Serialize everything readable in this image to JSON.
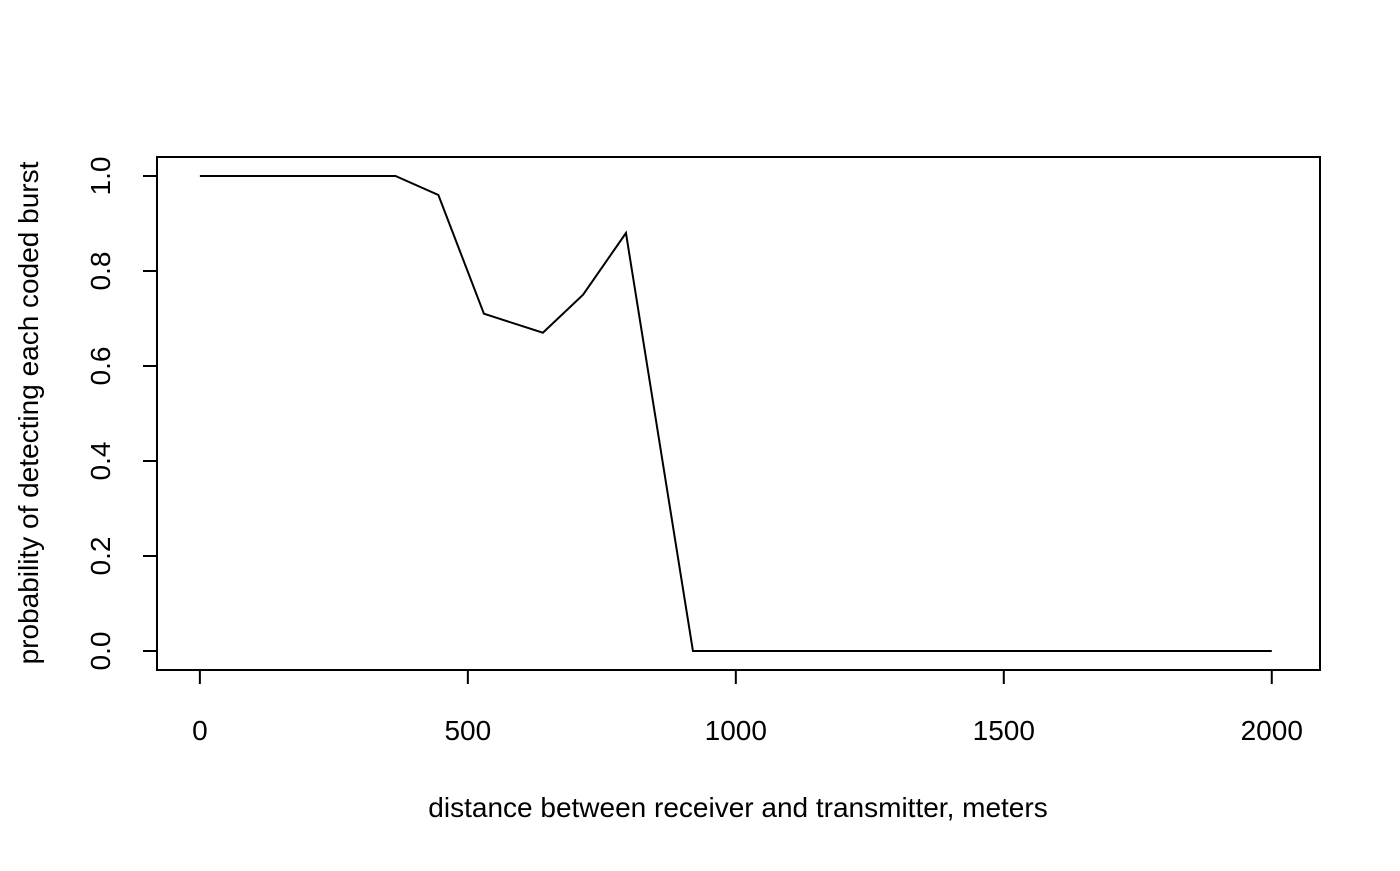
{
  "chart_data": {
    "type": "line",
    "title": "",
    "xlabel": "distance between receiver and transmitter, meters",
    "ylabel": "probability of detecting each coded burst",
    "xlim": [
      -80,
      2090
    ],
    "ylim": [
      -0.04,
      1.04
    ],
    "x_ticks": [
      0,
      500,
      1000,
      1500,
      2000
    ],
    "x_tick_labels": [
      "0",
      "500",
      "1000",
      "1500",
      "2000"
    ],
    "y_ticks": [
      0.0,
      0.2,
      0.4,
      0.6,
      0.8,
      1.0
    ],
    "y_tick_labels": [
      "0.0",
      "0.2",
      "0.4",
      "0.6",
      "0.8",
      "1.0"
    ],
    "grid": false,
    "legend": "none",
    "series": [
      {
        "color": "#000000",
        "x": [
          0,
          365,
          445,
          530,
          640,
          715,
          795,
          920,
          2000
        ],
        "y": [
          1.0,
          1.0,
          0.96,
          0.71,
          0.67,
          0.75,
          0.88,
          0.0,
          0.0
        ]
      }
    ]
  }
}
